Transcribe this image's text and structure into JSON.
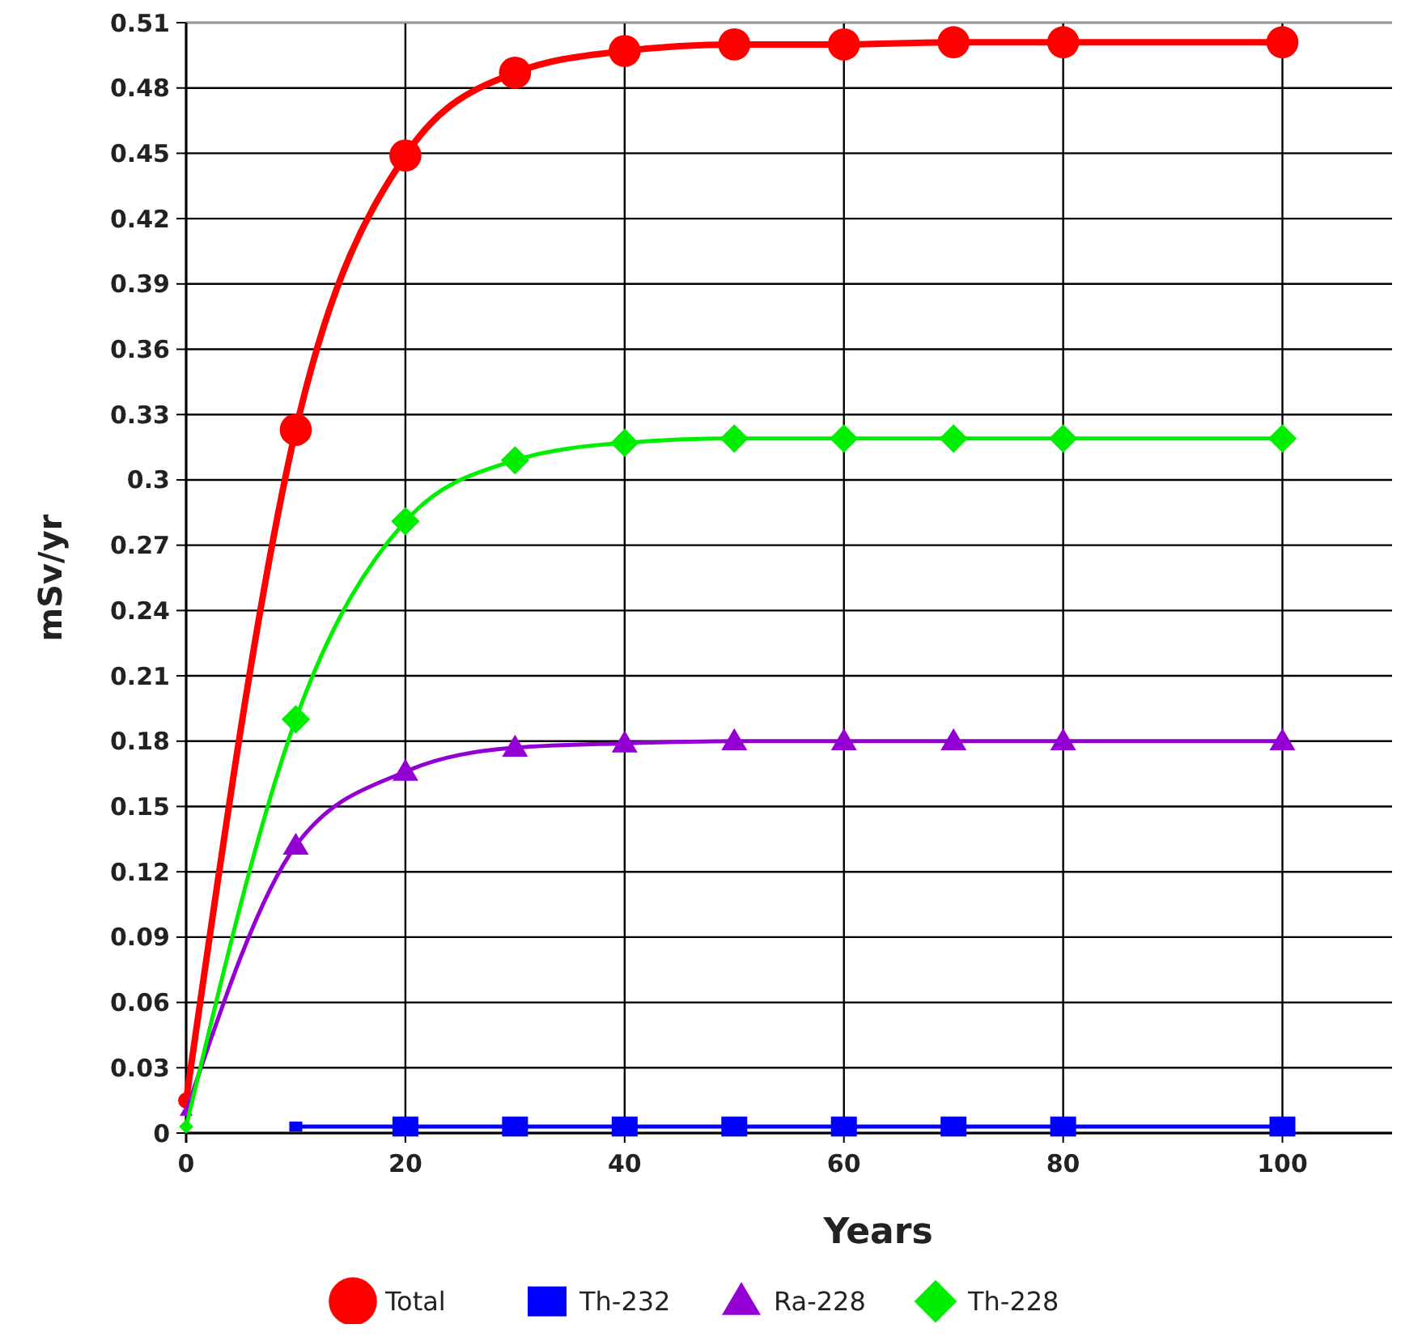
{
  "chart_data": {
    "type": "line",
    "xlabel": "Years",
    "ylabel": "mSv/yr",
    "x": [
      0,
      10,
      20,
      30,
      40,
      50,
      60,
      70,
      80,
      100
    ],
    "series": [
      {
        "name": "Total",
        "color": "#ff0000",
        "marker": "circle",
        "values": [
          0.015,
          0.323,
          0.449,
          0.487,
          0.497,
          0.5,
          0.5,
          0.501,
          0.501,
          0.501
        ]
      },
      {
        "name": "Th-232",
        "color": "#0000ff",
        "marker": "square",
        "values": [
          null,
          0.003,
          0.003,
          0.003,
          0.003,
          0.003,
          0.003,
          0.003,
          0.003,
          0.003
        ]
      },
      {
        "name": "Ra-228",
        "color": "#9400d3",
        "marker": "triangle",
        "values": [
          0.01,
          0.132,
          0.166,
          0.177,
          0.179,
          0.18,
          0.18,
          0.18,
          0.18,
          0.18
        ]
      },
      {
        "name": "Th-228",
        "color": "#00ee00",
        "marker": "diamond",
        "values": [
          0.003,
          0.19,
          0.281,
          0.309,
          0.317,
          0.319,
          0.319,
          0.319,
          0.319,
          0.319
        ]
      }
    ],
    "xlim": [
      0,
      110
    ],
    "xticks": [
      0,
      20,
      40,
      60,
      80,
      100
    ],
    "ylim": [
      0,
      0.51
    ],
    "yticks": [
      0,
      0.03,
      0.06,
      0.09,
      0.12,
      0.15,
      0.18,
      0.21,
      0.24,
      0.27,
      0.3,
      0.33,
      0.36,
      0.39,
      0.42,
      0.45,
      0.48,
      0.51
    ],
    "grid": true,
    "legend": "bottom",
    "line_style": "solid"
  }
}
